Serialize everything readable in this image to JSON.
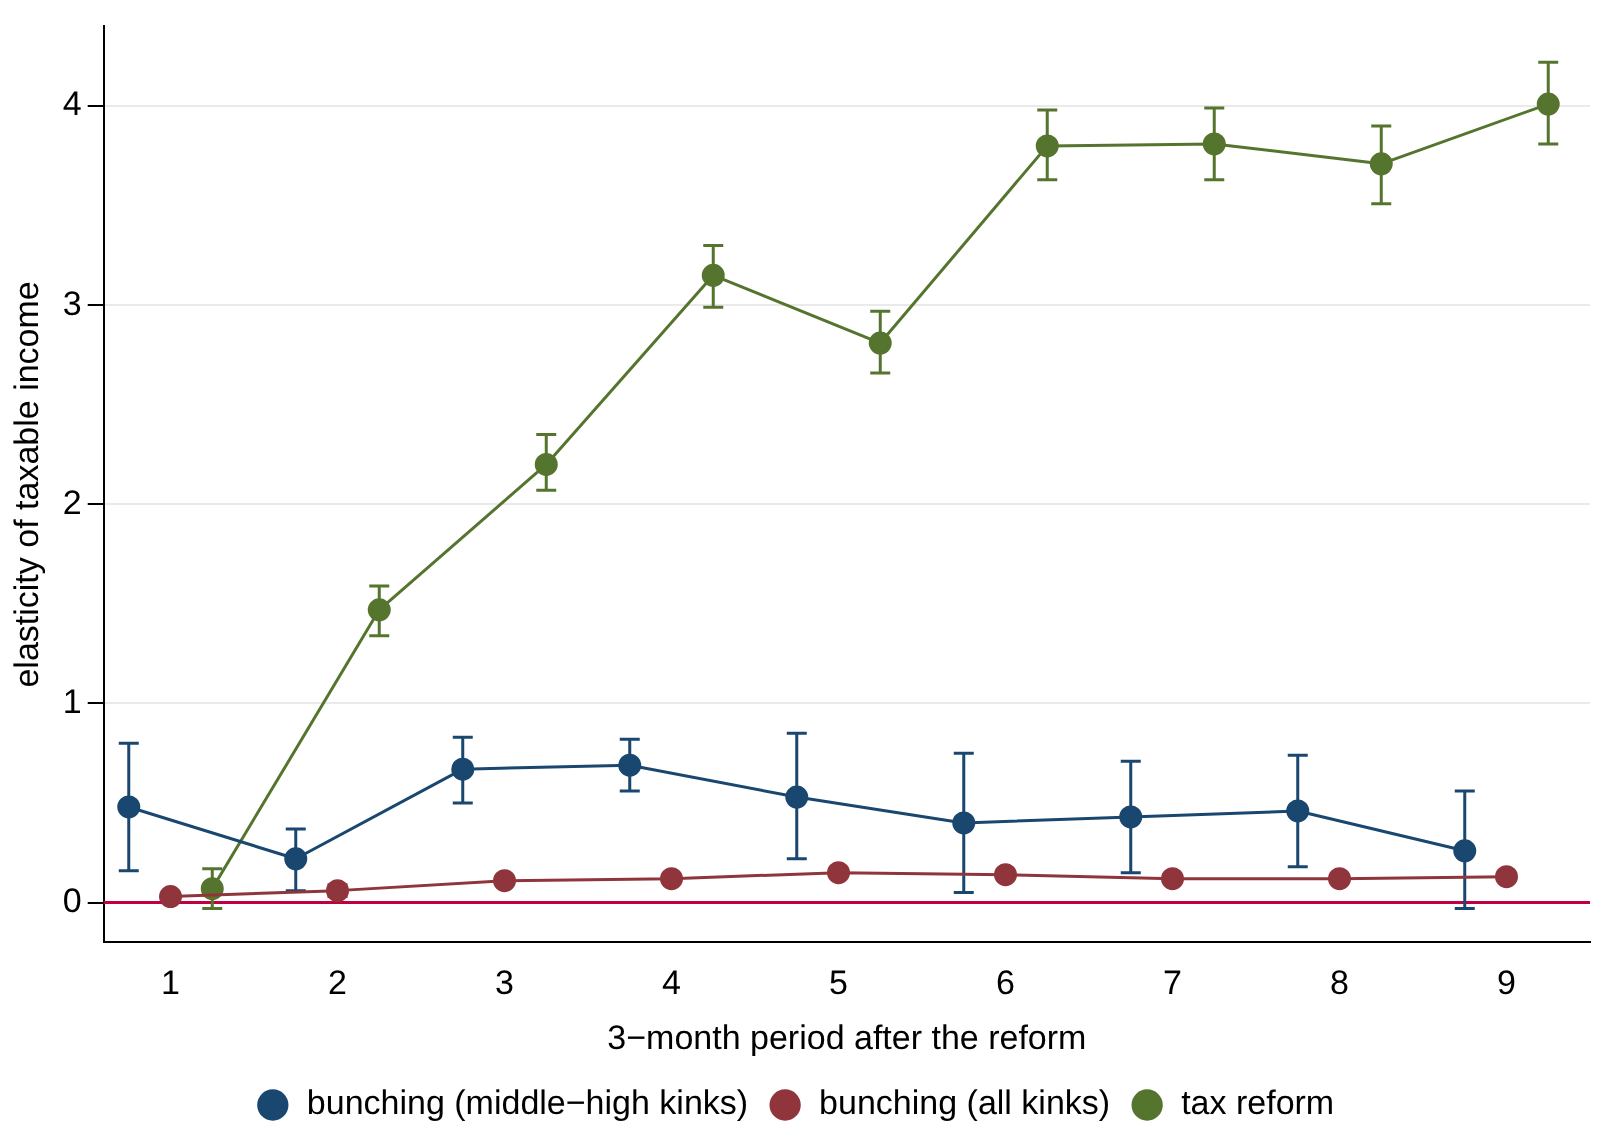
{
  "chart_data": {
    "type": "line",
    "xlabel": "3−month period after the reform",
    "ylabel": "elasticity of taxable income",
    "xlim": [
      0.6,
      9.5
    ],
    "xticks": [
      1,
      2,
      3,
      4,
      5,
      6,
      7,
      8,
      9
    ],
    "ylim": [
      -0.2,
      4.4
    ],
    "yticks": [
      0,
      1,
      2,
      3,
      4
    ],
    "grid": "y",
    "legend": "bottom",
    "marker": "circle",
    "line_style": "solid",
    "ref_lines": [
      {
        "axis": "y",
        "value": 0,
        "color": "#c00040"
      }
    ],
    "series": [
      {
        "name": "bunching (middle−high kinks)",
        "color": "#1a476f",
        "x": [
          0.75,
          1.75,
          2.75,
          3.75,
          4.75,
          5.75,
          6.75,
          7.75,
          8.75
        ],
        "values": [
          0.48,
          0.22,
          0.67,
          0.69,
          0.53,
          0.4,
          0.43,
          0.46,
          0.26
        ],
        "errors": [
          [
            0.16,
            0.8
          ],
          [
            0.06,
            0.37
          ],
          [
            0.5,
            0.83
          ],
          [
            0.56,
            0.82
          ],
          [
            0.22,
            0.85
          ],
          [
            0.05,
            0.75
          ],
          [
            0.15,
            0.71
          ],
          [
            0.18,
            0.74
          ],
          [
            -0.03,
            0.56
          ]
        ]
      },
      {
        "name": "bunching (all kinks)",
        "color": "#90353b",
        "x": [
          1,
          2,
          3,
          4,
          5,
          6,
          7,
          8,
          9
        ],
        "values": [
          0.03,
          0.06,
          0.11,
          0.12,
          0.15,
          0.14,
          0.12,
          0.12,
          0.13
        ],
        "errors": [
          null,
          [
            0.03,
            0.09
          ],
          null,
          null,
          null,
          null,
          null,
          null,
          null
        ]
      },
      {
        "name": "tax reform",
        "color": "#55752f",
        "x": [
          1.25,
          2.25,
          3.25,
          4.25,
          5.25,
          6.25,
          7.25,
          8.25,
          9.25
        ],
        "values": [
          0.07,
          1.47,
          2.2,
          3.15,
          2.81,
          3.8,
          3.81,
          3.71,
          4.01
        ],
        "errors": [
          [
            -0.03,
            0.17
          ],
          [
            1.34,
            1.59
          ],
          [
            2.07,
            2.35
          ],
          [
            2.99,
            3.3
          ],
          [
            2.66,
            2.97
          ],
          [
            3.63,
            3.98
          ],
          [
            3.63,
            3.99
          ],
          [
            3.51,
            3.9
          ],
          [
            3.81,
            4.22
          ]
        ]
      }
    ]
  }
}
